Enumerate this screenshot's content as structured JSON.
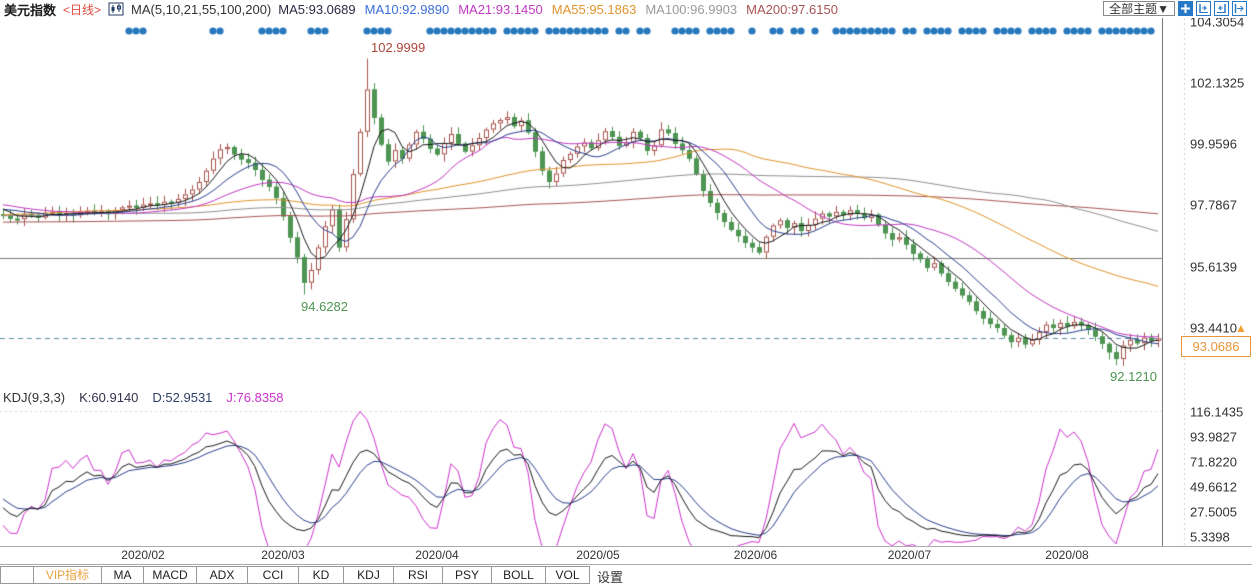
{
  "header": {
    "symbol": "美元指数",
    "period": "<日线>",
    "chart_icon": "candlestick-icon",
    "ma_group": "MA(5,10,21,55,100,200)",
    "ma_items": [
      {
        "label": "MA5:93.0689",
        "color": "#2b2b45"
      },
      {
        "label": "MA10:92.9890",
        "color": "#3a6fd8"
      },
      {
        "label": "MA21:93.1450",
        "color": "#c23ac2"
      },
      {
        "label": "MA55:95.1863",
        "color": "#e0952f"
      },
      {
        "label": "MA100:96.9903",
        "color": "#9a9a9a"
      },
      {
        "label": "MA200:97.6150",
        "color": "#a85454"
      }
    ],
    "theme_button": "全部主题▼",
    "toolbar_icons": [
      "move-icon",
      "y-axis-left-icon",
      "y-axis-right-icon",
      "pane-popout-icon"
    ]
  },
  "main_chart": {
    "y_axis_labels": [
      {
        "label": "104.3054",
        "value": 104.3054
      },
      {
        "label": "102.1325",
        "value": 102.1325
      },
      {
        "label": "99.9596",
        "value": 99.9596
      },
      {
        "label": "97.7867",
        "value": 97.7867
      },
      {
        "label": "95.6139",
        "value": 95.6139
      },
      {
        "label": "93.4410",
        "value": 93.441
      }
    ],
    "annotations": {
      "high": {
        "label": "102.9999",
        "price": 102.9999,
        "day": 52,
        "color": "#b0453c"
      },
      "low1": {
        "label": "94.6282",
        "price": 94.6282,
        "day": 43,
        "color": "#4e9553"
      },
      "low2": {
        "label": "92.1210",
        "price": 92.121,
        "day": 159,
        "color": "#4e9553"
      }
    },
    "last_price": {
      "label": "93.0686",
      "value": 93.0686
    }
  },
  "kdj_panel": {
    "title": "KDJ(9,3,3)",
    "k_label": "K:60.9140",
    "k_color": "#33334d",
    "d_label": "D:52.9531",
    "d_color": "#2f3f66",
    "j_label": "J:76.8358",
    "j_color": "#cc33cc",
    "y_axis_labels": [
      {
        "label": "116.1435",
        "value": 116.1435
      },
      {
        "label": "93.9827",
        "value": 93.9827
      },
      {
        "label": "71.8220",
        "value": 71.822
      },
      {
        "label": "49.6612",
        "value": 49.6612
      },
      {
        "label": "27.5005",
        "value": 27.5005
      },
      {
        "label": "5.3398",
        "value": 5.3398
      }
    ]
  },
  "x_axis": {
    "labels": [
      "2020/02",
      "2020/03",
      "2020/04",
      "2020/05",
      "2020/06",
      "2020/07",
      "2020/08"
    ],
    "tick_days": [
      20,
      40,
      62,
      85,
      107.5,
      129.5,
      152
    ]
  },
  "tabs": {
    "items": [
      "VIP指标",
      "MA",
      "MACD",
      "ADX",
      "CCI",
      "KD",
      "KDJ",
      "RSI",
      "PSY",
      "BOLL",
      "VOL"
    ],
    "widths": [
      69,
      43,
      54,
      52,
      52,
      46,
      51,
      50,
      50,
      55,
      45
    ],
    "active_index": 0,
    "settings_label": "设置"
  },
  "colors": {
    "up_candle": "#a9544d",
    "down_candle": "#4e9553",
    "ma5": "#1a1a1a",
    "ma10": "#2a3f8f",
    "ma21": "#c23ac2",
    "ma55": "#e0952f",
    "ma100": "#909090",
    "ma200": "#a85454",
    "k_line": "#1a1a1a",
    "d_line": "#2a3f8f",
    "j_line": "#cc33cc",
    "event_dot": "#2878be",
    "last_price_line": "#5b8fa8",
    "last_price_box": "#e8973d",
    "ref_line": "#777777",
    "period_label": "#e04a3f",
    "toolbar_icon": "#2878c8",
    "vip_tab": "#e8a33d"
  },
  "chart_data": [
    {
      "type": "candlestick",
      "title": "美元指数 日线",
      "x_unit": "trading-day",
      "y_ticks": [
        104.3054,
        102.1325,
        99.9596,
        97.7867,
        95.6139,
        93.441
      ],
      "x_tick_labels": [
        "2020/02",
        "2020/03",
        "2020/04",
        "2020/05",
        "2020/06",
        "2020/07",
        "2020/08"
      ],
      "closes": [
        97.45,
        97.32,
        97.3,
        97.48,
        97.45,
        97.36,
        97.5,
        97.56,
        97.46,
        97.52,
        97.44,
        97.55,
        97.6,
        97.52,
        97.58,
        97.48,
        97.62,
        97.72,
        97.78,
        97.7,
        97.82,
        97.86,
        97.8,
        97.92,
        97.88,
        98.02,
        98.18,
        98.35,
        98.62,
        99.02,
        99.45,
        99.78,
        99.86,
        99.6,
        99.42,
        99.3,
        99.05,
        98.7,
        98.45,
        98.05,
        97.4,
        96.65,
        95.95,
        95.05,
        95.5,
        96.3,
        97.05,
        97.65,
        96.3,
        97.3,
        98.9,
        100.4,
        101.9,
        100.9,
        99.95,
        99.35,
        99.75,
        99.45,
        99.95,
        100.4,
        100.15,
        99.8,
        99.6,
        100.0,
        100.32,
        99.98,
        99.7,
        99.92,
        100.18,
        100.48,
        100.7,
        100.82,
        100.92,
        100.6,
        100.8,
        100.38,
        99.7,
        99.02,
        98.62,
        98.92,
        99.4,
        99.62,
        99.88,
        100.02,
        99.82,
        100.1,
        100.42,
        100.22,
        99.9,
        100.02,
        100.4,
        100.18,
        99.72,
        99.92,
        100.48,
        100.35,
        99.98,
        99.75,
        99.45,
        98.9,
        98.3,
        97.88,
        97.52,
        97.2,
        96.92,
        96.7,
        96.46,
        96.3,
        96.12,
        96.68,
        97.08,
        97.26,
        97.0,
        97.16,
        96.88,
        97.1,
        97.32,
        97.5,
        97.4,
        97.56,
        97.44,
        97.62,
        97.5,
        97.34,
        97.46,
        97.1,
        96.8,
        96.58,
        96.66,
        96.4,
        96.08,
        95.88,
        95.58,
        95.74,
        95.38,
        95.08,
        94.84,
        94.6,
        94.38,
        94.04,
        93.78,
        93.58,
        93.44,
        93.18,
        92.94,
        93.1,
        92.86,
        93.02,
        93.3,
        93.56,
        93.44,
        93.62,
        93.5,
        93.66,
        93.54,
        93.38,
        93.14,
        92.88,
        92.58,
        92.34,
        92.82,
        93.02,
        92.9,
        93.1,
        92.98,
        93.0686
      ],
      "key_extremes": {
        "high_day": 52,
        "high": 102.9999,
        "low1_day": 43,
        "low1": 94.6282,
        "low2_day": 159,
        "low2": 92.121
      },
      "last_close": 93.0686,
      "horizontal_line": 95.93,
      "ma_windows": [
        5,
        10,
        21,
        55,
        100,
        200
      ],
      "ma_last": {
        "ma5": 93.0689,
        "ma10": 92.989,
        "ma21": 93.145,
        "ma55": 95.1863,
        "ma100": 96.9903,
        "ma200": 97.615
      },
      "event_dot_runs": [
        [
          18,
          3
        ],
        [
          30,
          2
        ],
        [
          37,
          4
        ],
        [
          44,
          3
        ],
        [
          52,
          4
        ],
        [
          61,
          5
        ],
        [
          66,
          5
        ],
        [
          72,
          5
        ],
        [
          78,
          5
        ],
        [
          83,
          4
        ],
        [
          88,
          2
        ],
        [
          91,
          2
        ],
        [
          96,
          4
        ],
        [
          101,
          4
        ],
        [
          107,
          1
        ],
        [
          110,
          2
        ],
        [
          113,
          2
        ],
        [
          116,
          1
        ],
        [
          119,
          5
        ],
        [
          124,
          4
        ],
        [
          129,
          2
        ],
        [
          132,
          4
        ],
        [
          137,
          4
        ],
        [
          142,
          4
        ],
        [
          147,
          4
        ],
        [
          152,
          4
        ],
        [
          157,
          5
        ],
        [
          162,
          3
        ]
      ]
    },
    {
      "type": "line",
      "name": "KDJ",
      "params": [
        9,
        3,
        3
      ],
      "series": [
        "K",
        "D",
        "J"
      ],
      "y_ticks": [
        116.1435,
        93.9827,
        71.822,
        49.6612,
        27.5005,
        5.3398
      ],
      "last_values": {
        "K": 60.914,
        "D": 52.9531,
        "J": 76.8358
      }
    }
  ]
}
